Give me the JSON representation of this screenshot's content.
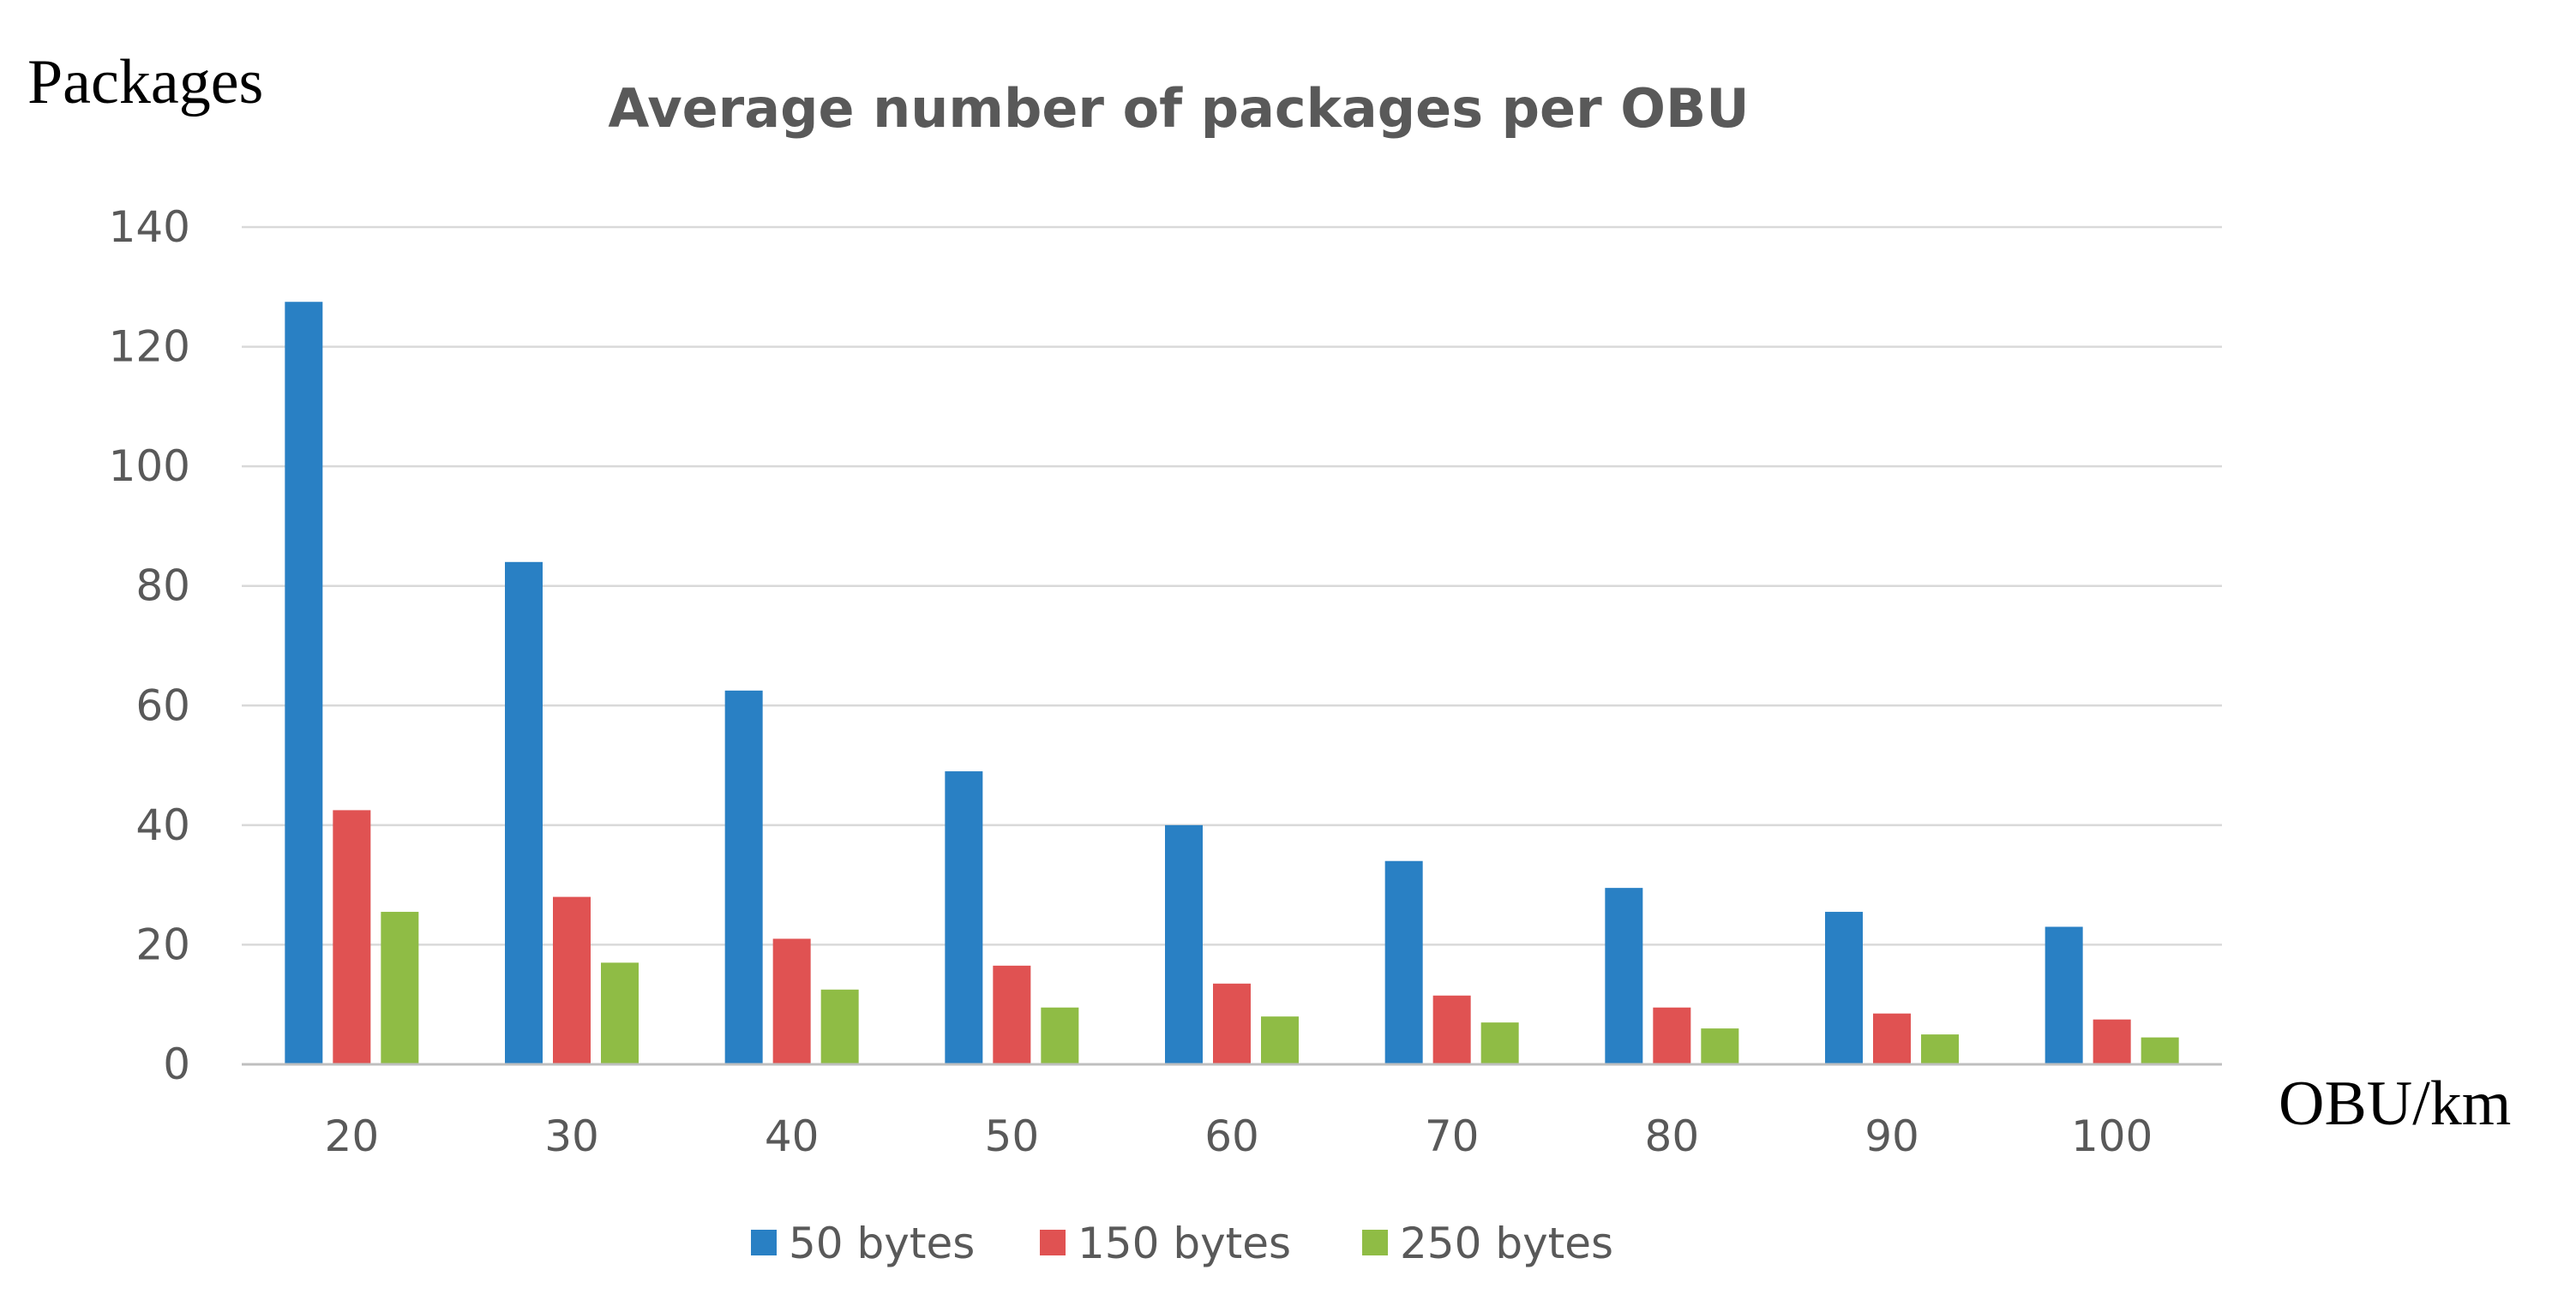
{
  "chart_data": {
    "type": "bar",
    "title": "Average  number of  packages per OBU",
    "ylabel": "Packages",
    "xlabel": "OBU/km",
    "categories": [
      "20",
      "30",
      "40",
      "50",
      "60",
      "70",
      "80",
      "90",
      "100"
    ],
    "ylim": [
      0,
      140
    ],
    "yticks": [
      0,
      20,
      40,
      60,
      80,
      100,
      120,
      140
    ],
    "grid": true,
    "legend_position": "bottom",
    "series": [
      {
        "name": "50 bytes",
        "color": "#2980c4",
        "values": [
          127.5,
          84,
          62.5,
          49,
          40,
          34,
          29.5,
          25.5,
          23
        ]
      },
      {
        "name": "150 bytes",
        "color": "#e05252",
        "values": [
          42.5,
          28,
          21,
          16.5,
          13.5,
          11.5,
          9.5,
          8.5,
          7.5
        ]
      },
      {
        "name": "250 bytes",
        "color": "#8fbc45",
        "values": [
          25.5,
          17,
          12.5,
          9.5,
          8,
          7,
          6,
          5,
          4.5
        ]
      }
    ]
  }
}
